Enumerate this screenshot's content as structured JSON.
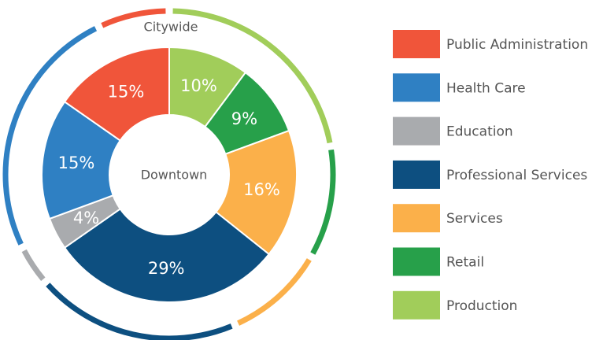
{
  "chart_data": {
    "type": "donut",
    "categories": [
      "Public Administration",
      "Health Care",
      "Education",
      "Professional Services",
      "Services",
      "Retail",
      "Production"
    ],
    "colors": [
      "#f0553a",
      "#2f80c3",
      "#a9abae",
      "#0d4f80",
      "#fbb04a",
      "#27a04a",
      "#a1cd5a"
    ],
    "series": [
      {
        "name": "Citywide",
        "values": [
          7,
          25,
          4,
          20,
          10,
          11,
          22
        ]
      },
      {
        "name": "Downtown",
        "values": [
          15,
          15,
          4,
          29,
          16,
          9,
          10
        ],
        "value_labels": [
          "15%",
          "15%",
          "4%",
          "29%",
          "16%",
          "9%",
          "10%"
        ]
      }
    ]
  }
}
